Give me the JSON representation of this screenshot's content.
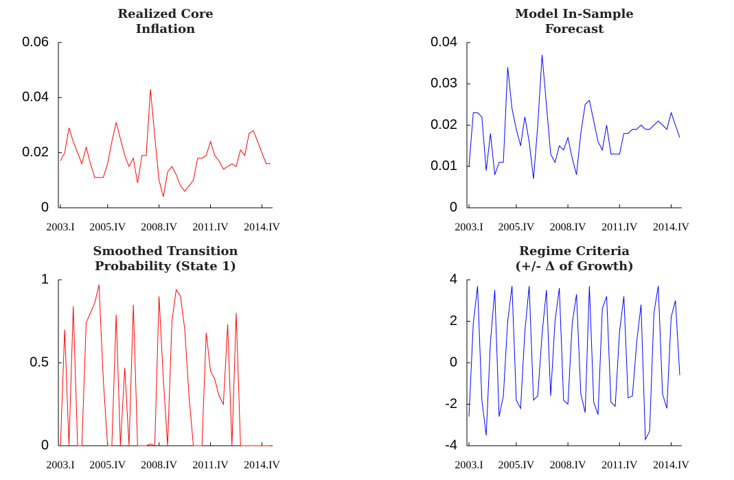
{
  "chart_data": [
    {
      "type": "line",
      "title": [
        "Realized Core",
        "Inflation"
      ],
      "color": "#ff0000",
      "categories": [
        "2003.I",
        null,
        null,
        null,
        null,
        null,
        null,
        null,
        null,
        null,
        null,
        "2005.IV",
        null,
        null,
        null,
        null,
        null,
        null,
        null,
        null,
        null,
        null,
        null,
        "2008.IV",
        null,
        null,
        null,
        null,
        null,
        null,
        null,
        null,
        null,
        null,
        null,
        "2011.IV",
        null,
        null,
        null,
        null,
        null,
        null,
        null,
        null,
        null,
        null,
        null,
        "2014.IV",
        null,
        null
      ],
      "values": [
        0.017,
        0.02,
        0.029,
        0.024,
        0.02,
        0.016,
        0.022,
        0.016,
        0.011,
        0.011,
        0.011,
        0.016,
        0.024,
        0.031,
        0.025,
        0.019,
        0.015,
        0.018,
        0.009,
        0.019,
        0.019,
        0.043,
        0.026,
        0.01,
        0.004,
        0.013,
        0.015,
        0.012,
        0.008,
        0.006,
        0.008,
        0.01,
        0.018,
        0.018,
        0.019,
        0.024,
        0.019,
        0.017,
        0.014,
        0.015,
        0.016,
        0.015,
        0.021,
        0.019,
        0.027,
        0.028,
        0.024,
        0.02,
        0.016,
        0.016
      ],
      "ylim": [
        0,
        0.06
      ],
      "yticks": [
        0,
        {
          "value": 0.02,
          "label": "0.02"
        },
        {
          "value": 0.04,
          "label": "0.04"
        },
        {
          "value": 0.06,
          "label": "0.06"
        }
      ]
    },
    {
      "type": "line",
      "title": [
        "Model In-Sample",
        "Forecast"
      ],
      "color": "#0000ff",
      "categories": [
        "2003.I",
        null,
        null,
        null,
        null,
        null,
        null,
        null,
        null,
        null,
        null,
        "2005.IV",
        null,
        null,
        null,
        null,
        null,
        null,
        null,
        null,
        null,
        null,
        null,
        "2008.IV",
        null,
        null,
        null,
        null,
        null,
        null,
        null,
        null,
        null,
        null,
        null,
        "2011.IV",
        null,
        null,
        null,
        null,
        null,
        null,
        null,
        null,
        null,
        null,
        null,
        "2014.IV",
        null,
        null
      ],
      "values": [
        0.01,
        0.023,
        0.023,
        0.022,
        0.009,
        0.018,
        0.008,
        0.011,
        0.011,
        0.034,
        0.024,
        0.019,
        0.015,
        0.022,
        0.016,
        0.007,
        0.02,
        0.037,
        0.025,
        0.013,
        0.011,
        0.015,
        0.014,
        0.017,
        0.012,
        0.008,
        0.018,
        0.025,
        0.026,
        0.021,
        0.016,
        0.014,
        0.02,
        0.013,
        0.013,
        0.013,
        0.018,
        0.018,
        0.019,
        0.019,
        0.02,
        0.019,
        0.019,
        0.02,
        0.021,
        0.02,
        0.019,
        0.023,
        0.02,
        0.017
      ],
      "ylim": [
        0,
        0.04
      ],
      "yticks": [
        0,
        {
          "value": 0.01,
          "label": "0.01"
        },
        {
          "value": 0.02,
          "label": "0.02"
        },
        {
          "value": 0.03,
          "label": "0.03"
        },
        {
          "value": 0.04,
          "label": "0.04"
        }
      ]
    },
    {
      "type": "line",
      "title": [
        "Smoothed Transition",
        "Probability (State 1)"
      ],
      "color": "#ff0000",
      "categories": [
        "2003.I",
        null,
        null,
        null,
        null,
        null,
        null,
        null,
        null,
        null,
        null,
        "2005.IV",
        null,
        null,
        null,
        null,
        null,
        null,
        null,
        null,
        null,
        null,
        null,
        "2008.IV",
        null,
        null,
        null,
        null,
        null,
        null,
        null,
        null,
        null,
        null,
        null,
        "2011.IV",
        null,
        null,
        null,
        null,
        null,
        null,
        null,
        null,
        null,
        null,
        null,
        "2014.IV",
        null,
        null
      ],
      "values": [
        0,
        0.7,
        0,
        0.84,
        0,
        0,
        0.74,
        0.8,
        0.86,
        0.97,
        0.4,
        0,
        0,
        0.79,
        0,
        0.47,
        0,
        0.85,
        0,
        0,
        0,
        0.01,
        0,
        0.9,
        0.4,
        0,
        0.75,
        0.94,
        0.9,
        0.7,
        0.3,
        0,
        0,
        0,
        0.68,
        0.45,
        0.4,
        0.3,
        0.25,
        0.73,
        0,
        0.8,
        0,
        0,
        0,
        0,
        0,
        0,
        0,
        0
      ],
      "ylim": [
        0,
        1
      ],
      "yticks": [
        0,
        0.5,
        1
      ]
    },
    {
      "type": "line",
      "title": [
        "Regime Criteria",
        "(+/- Δ of Growth)"
      ],
      "color": "#0000ff",
      "categories": [
        "2003.I",
        null,
        null,
        null,
        null,
        null,
        null,
        null,
        null,
        null,
        null,
        "2005.IV",
        null,
        null,
        null,
        null,
        null,
        null,
        null,
        null,
        null,
        null,
        null,
        "2008.IV",
        null,
        null,
        null,
        null,
        null,
        null,
        null,
        null,
        null,
        null,
        null,
        "2011.IV",
        null,
        null,
        null,
        null,
        null,
        null,
        null,
        null,
        null,
        null,
        null,
        "2014.IV",
        null,
        null
      ],
      "values": [
        -2.6,
        1.9,
        3.7,
        -1.8,
        -3.5,
        1.0,
        3.5,
        -2.6,
        -1.6,
        2.0,
        3.7,
        -1.8,
        -2.2,
        1.5,
        3.7,
        -1.8,
        -1.6,
        1.4,
        3.5,
        -1.6,
        2.0,
        3.6,
        -1.8,
        -2.0,
        1.9,
        3.3,
        -1.5,
        -2.4,
        3.7,
        -1.9,
        -2.5,
        2.6,
        3.2,
        -1.9,
        -2.1,
        1.5,
        3.2,
        -1.7,
        -1.6,
        1.0,
        2.8,
        -3.7,
        -3.3,
        2.4,
        3.7,
        -1.5,
        -2.2,
        2.2,
        3.0,
        -0.6
      ],
      "ylim": [
        -4,
        4
      ],
      "yticks": [
        -4,
        -2,
        0,
        2,
        4
      ]
    }
  ]
}
